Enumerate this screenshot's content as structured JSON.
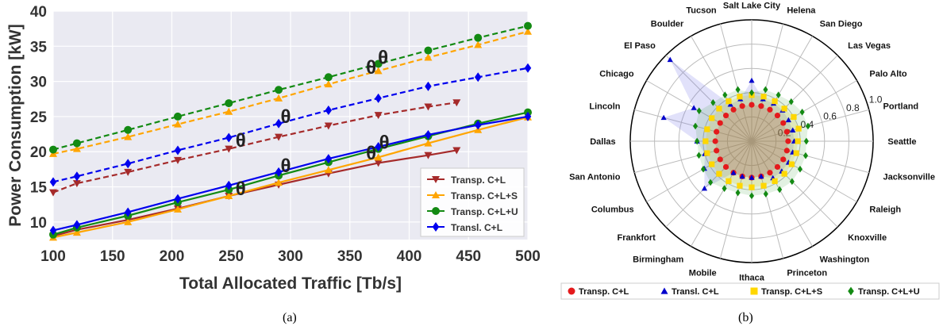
{
  "captions": {
    "a": "(a)",
    "b": "(b)"
  },
  "chart_data": [
    {
      "type": "line",
      "title": "",
      "xlabel": "Total Allocated Traffic [Tb/s]",
      "ylabel": "Power Consumption [kW]",
      "xlim": [
        100,
        500
      ],
      "ylim": [
        7.5,
        40
      ],
      "xticks": [
        "100",
        "150",
        "200",
        "250",
        "300",
        "350",
        "400",
        "450",
        "500"
      ],
      "yticks": [
        "10",
        "15",
        "20",
        "25",
        "30",
        "35",
        "40"
      ],
      "grid": true,
      "legend_position": "lower-right",
      "legend": [
        "Transp. C+L",
        "Transp. C+L+S",
        "Transp. C+L+U",
        "Transl. C+L"
      ],
      "colors": {
        "Transp. C+L": "#a52a2a",
        "Transp. C+L+S": "#ffa500",
        "Transp. C+L+U": "#138a13",
        "Transl. C+L": "#0000ee"
      },
      "marker_icons": {
        "Transp. C+L": "triangle-down",
        "Transp. C+L+S": "triangle-up",
        "Transp. C+L+U": "circle",
        "Transl. C+L": "diamond"
      },
      "series": [
        {
          "name": "Transp. C+L",
          "style": "solid",
          "x": [
            100,
            120,
            163,
            205,
            248,
            290,
            332,
            374,
            416,
            440
          ],
          "y": [
            8.0,
            8.9,
            10.3,
            11.9,
            13.7,
            15.3,
            16.9,
            18.4,
            19.5,
            20.2
          ]
        },
        {
          "name": "Transp. C+L",
          "style": "dashed",
          "x": [
            100,
            120,
            163,
            205,
            248,
            290,
            332,
            374,
            416,
            440
          ],
          "y": [
            14.2,
            15.5,
            17.1,
            18.8,
            20.4,
            22.1,
            23.7,
            25.2,
            26.4,
            27.0
          ]
        },
        {
          "name": "Transp. C+L+S",
          "style": "solid",
          "x": [
            100,
            120,
            163,
            205,
            248,
            290,
            332,
            374,
            416,
            458,
            500
          ],
          "y": [
            7.8,
            8.5,
            10.0,
            11.8,
            13.7,
            15.6,
            17.4,
            19.2,
            21.2,
            23.1,
            24.9
          ]
        },
        {
          "name": "Transp. C+L+S",
          "style": "dashed",
          "x": [
            100,
            120,
            163,
            205,
            248,
            290,
            332,
            374,
            416,
            458,
            500
          ],
          "y": [
            19.7,
            20.4,
            22.1,
            23.9,
            25.7,
            27.6,
            29.6,
            31.5,
            33.4,
            35.2,
            37.1
          ]
        },
        {
          "name": "Transp. C+L+U",
          "style": "solid",
          "x": [
            100,
            120,
            163,
            205,
            248,
            290,
            332,
            374,
            416,
            458,
            500
          ],
          "y": [
            8.2,
            9.2,
            10.9,
            12.8,
            14.6,
            16.6,
            18.5,
            20.4,
            22.2,
            24.0,
            25.6
          ]
        },
        {
          "name": "Transp. C+L+U",
          "style": "dashed",
          "x": [
            100,
            120,
            163,
            205,
            248,
            290,
            332,
            374,
            416,
            458,
            500
          ],
          "y": [
            20.3,
            21.2,
            23.1,
            25.0,
            26.9,
            28.8,
            30.6,
            32.5,
            34.4,
            36.2,
            37.9
          ]
        },
        {
          "name": "Transl. C+L",
          "style": "solid",
          "x": [
            100,
            120,
            163,
            205,
            248,
            290,
            332,
            374,
            416,
            458,
            500
          ],
          "y": [
            8.8,
            9.6,
            11.4,
            13.3,
            15.2,
            17.1,
            19.0,
            20.7,
            22.4,
            23.8,
            25.0
          ]
        },
        {
          "name": "Transl. C+L",
          "style": "dashed",
          "x": [
            100,
            120,
            163,
            205,
            248,
            290,
            332,
            374,
            416,
            458,
            500
          ],
          "y": [
            15.7,
            16.5,
            18.3,
            20.2,
            22.0,
            24.0,
            25.9,
            27.6,
            29.3,
            30.6,
            31.9
          ]
        }
      ],
      "annotations": [
        {
          "label": "θ",
          "x": 258,
          "y": 21.6
        },
        {
          "label": "θ",
          "x": 258,
          "y": 14.7
        },
        {
          "label": "θ",
          "x": 296,
          "y": 25.0
        },
        {
          "label": "θ",
          "x": 296,
          "y": 18.0
        },
        {
          "label": "θ",
          "x": 368,
          "y": 32.0
        },
        {
          "label": "θ",
          "x": 378,
          "y": 33.4
        },
        {
          "label": "θ",
          "x": 368,
          "y": 19.8
        },
        {
          "label": "θ",
          "x": 379,
          "y": 21.3
        }
      ]
    },
    {
      "type": "radar",
      "title": "",
      "rlim": [
        0,
        1.0
      ],
      "rticks": [
        "0.2",
        "0.4",
        "0.6",
        "0.8",
        "1.0"
      ],
      "grid": true,
      "legend_position": "bottom",
      "categories": [
        "Seattle",
        "Portland",
        "Palo Alto",
        "Las Vegas",
        "San Diego",
        "Helena",
        "Salt Lake City",
        "Tucson",
        "Boulder",
        "El Paso",
        "Chicago",
        "Lincoln",
        "Dallas",
        "San Antonio",
        "Columbus",
        "Frankfort",
        "Birmingham",
        "Mobile",
        "Ithaca",
        "Princeton",
        "Washington",
        "Knoxville",
        "Raleigh",
        "Jacksonville"
      ],
      "colors": {
        "Transp. C+L": "#e41a1c",
        "Transl. C+L": "#0000cc",
        "Transp. C+L+S": "#ffd700",
        "Transp. C+L+U": "#138a13"
      },
      "marker_icons": {
        "Transp. C+L": "circle",
        "Transl. C+L": "triangle-up",
        "Transp. C+L+S": "square",
        "Transp. C+L+U": "diamond"
      },
      "series": [
        {
          "name": "Transp. C+L",
          "values": [
            0.3,
            0.3,
            0.3,
            0.3,
            0.3,
            0.3,
            0.3,
            0.3,
            0.3,
            0.3,
            0.3,
            0.3,
            0.3,
            0.3,
            0.3,
            0.3,
            0.3,
            0.3,
            0.3,
            0.3,
            0.3,
            0.3,
            0.3,
            0.3
          ]
        },
        {
          "name": "Transl. C+L",
          "values": [
            0.35,
            0.35,
            0.35,
            0.36,
            0.36,
            0.36,
            0.5,
            0.36,
            0.35,
            0.95,
            0.55,
            0.75,
            0.45,
            0.4,
            0.45,
            0.55,
            0.3,
            0.3,
            0.3,
            0.3,
            0.35,
            0.35,
            0.35,
            0.35
          ]
        },
        {
          "name": "Transp. C+L+S",
          "values": [
            0.38,
            0.4,
            0.4,
            0.38,
            0.38,
            0.38,
            0.38,
            0.38,
            0.38,
            0.38,
            0.38,
            0.38,
            0.38,
            0.38,
            0.38,
            0.38,
            0.38,
            0.38,
            0.38,
            0.38,
            0.38,
            0.38,
            0.38,
            0.38
          ]
        },
        {
          "name": "Transp. C+L+U",
          "values": [
            0.45,
            0.48,
            0.48,
            0.46,
            0.44,
            0.44,
            0.4,
            0.44,
            0.44,
            0.45,
            0.5,
            0.48,
            0.45,
            0.45,
            0.46,
            0.48,
            0.45,
            0.44,
            0.45,
            0.45,
            0.46,
            0.47,
            0.46,
            0.46
          ]
        }
      ],
      "legend": [
        "Transp. C+L",
        "Transl. C+L",
        "Transp. C+L+S",
        "Transp. C+L+U"
      ]
    }
  ]
}
